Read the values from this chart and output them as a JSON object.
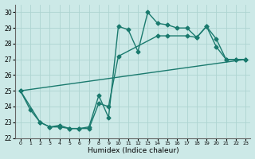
{
  "xlabel": "Humidex (Indice chaleur)",
  "bg_color": "#cce9e7",
  "grid_color": "#aed4d1",
  "line_color": "#1a7a6e",
  "xlim": [
    -0.5,
    23.5
  ],
  "ylim": [
    22,
    30.5
  ],
  "xticks": [
    0,
    1,
    2,
    3,
    4,
    5,
    6,
    7,
    8,
    9,
    10,
    11,
    12,
    13,
    14,
    15,
    16,
    17,
    18,
    19,
    20,
    21,
    22,
    23
  ],
  "yticks": [
    22,
    23,
    24,
    25,
    26,
    27,
    28,
    29,
    30
  ],
  "series1_x": [
    0,
    1,
    2,
    3,
    4,
    5,
    6,
    7,
    8,
    9,
    10,
    11,
    12,
    13,
    14,
    15,
    16,
    17,
    18,
    19,
    20,
    21,
    22,
    23
  ],
  "series1_y": [
    25.0,
    23.8,
    23.0,
    22.7,
    22.8,
    22.6,
    22.6,
    22.7,
    24.7,
    23.3,
    29.1,
    28.9,
    27.5,
    30.0,
    29.3,
    29.2,
    29.0,
    29.0,
    28.4,
    29.1,
    27.8,
    27.0,
    27.0,
    27.0
  ],
  "series2_x": [
    0,
    2,
    3,
    4,
    5,
    6,
    7,
    8,
    9,
    10,
    14,
    15,
    17,
    18,
    19,
    20,
    21,
    22,
    23
  ],
  "series2_y": [
    25.0,
    23.0,
    22.7,
    22.7,
    22.6,
    22.6,
    22.6,
    24.2,
    24.0,
    27.2,
    28.5,
    28.5,
    28.5,
    28.4,
    29.1,
    28.3,
    27.0,
    27.0,
    27.0
  ],
  "series3_x": [
    0,
    23
  ],
  "series3_y": [
    25.0,
    27.0
  ],
  "marker_size": 2.5,
  "linewidth": 1.0
}
